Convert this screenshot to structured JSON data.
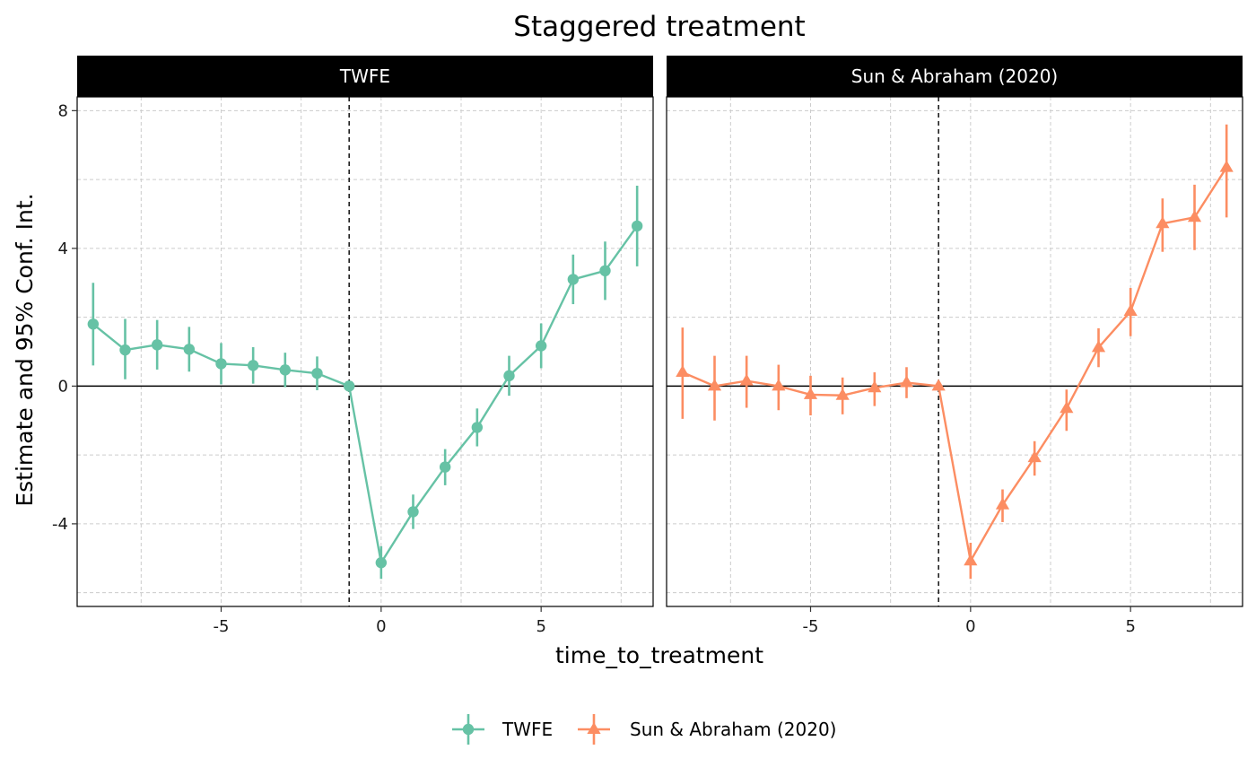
{
  "chart_data": {
    "type": "line",
    "title": "Staggered treatment",
    "xlabel": "time_to_treatment",
    "ylabel": "Estimate and 95% Conf. Int.",
    "x_ticks": [
      -5,
      0,
      5
    ],
    "y_ticks": [
      8,
      4,
      0,
      -4
    ],
    "ylim": [
      -6.4,
      8.4
    ],
    "xlim": [
      -9.5,
      8.5
    ],
    "reference_lines": {
      "vertical_dashed_x": -1,
      "horizontal_solid_y": 0
    },
    "grid": true,
    "legend_position": "bottom",
    "x": [
      -9,
      -8,
      -7,
      -6,
      -5,
      -4,
      -3,
      -2,
      -1,
      0,
      1,
      2,
      3,
      4,
      5,
      6,
      7,
      8
    ],
    "series": [
      {
        "name": "TWFE",
        "panel": "TWFE",
        "color": "#66c2a5",
        "marker": "circle",
        "values": [
          1.8,
          1.05,
          1.2,
          1.07,
          0.65,
          0.6,
          0.47,
          0.37,
          0.0,
          -5.13,
          -3.65,
          -2.35,
          -1.2,
          0.3,
          1.17,
          3.1,
          3.35,
          4.65
        ],
        "ci_low": [
          0.6,
          0.2,
          0.48,
          0.42,
          0.05,
          0.07,
          -0.03,
          -0.12,
          0.0,
          -5.6,
          -4.15,
          -2.88,
          -1.75,
          -0.28,
          0.52,
          2.38,
          2.5,
          3.48
        ],
        "ci_high": [
          3.0,
          1.95,
          1.92,
          1.72,
          1.25,
          1.13,
          0.97,
          0.86,
          0.0,
          -4.65,
          -3.15,
          -1.83,
          -0.65,
          0.88,
          1.82,
          3.82,
          4.2,
          5.82
        ]
      },
      {
        "name": "Sun & Abraham (2020)",
        "panel": "Sun & Abraham (2020)",
        "color": "#fc8d62",
        "marker": "triangle",
        "values": [
          0.4,
          0.0,
          0.15,
          0.0,
          -0.25,
          -0.27,
          -0.05,
          0.1,
          0.0,
          -5.08,
          -3.45,
          -2.08,
          -0.65,
          1.12,
          2.17,
          4.72,
          4.9,
          6.35
        ],
        "ci_low": [
          -0.95,
          -1.0,
          -0.63,
          -0.7,
          -0.85,
          -0.82,
          -0.58,
          -0.35,
          0.0,
          -5.6,
          -3.95,
          -2.6,
          -1.3,
          0.55,
          1.45,
          3.9,
          3.95,
          4.9
        ],
        "ci_high": [
          1.7,
          0.88,
          0.88,
          0.62,
          0.3,
          0.25,
          0.4,
          0.55,
          0.0,
          -4.55,
          -3.0,
          -1.6,
          -0.1,
          1.68,
          2.85,
          5.45,
          5.85,
          7.6
        ]
      }
    ],
    "panels": [
      "TWFE",
      "Sun & Abraham (2020)"
    ],
    "legend": [
      "TWFE",
      "Sun & Abraham (2020)"
    ]
  }
}
